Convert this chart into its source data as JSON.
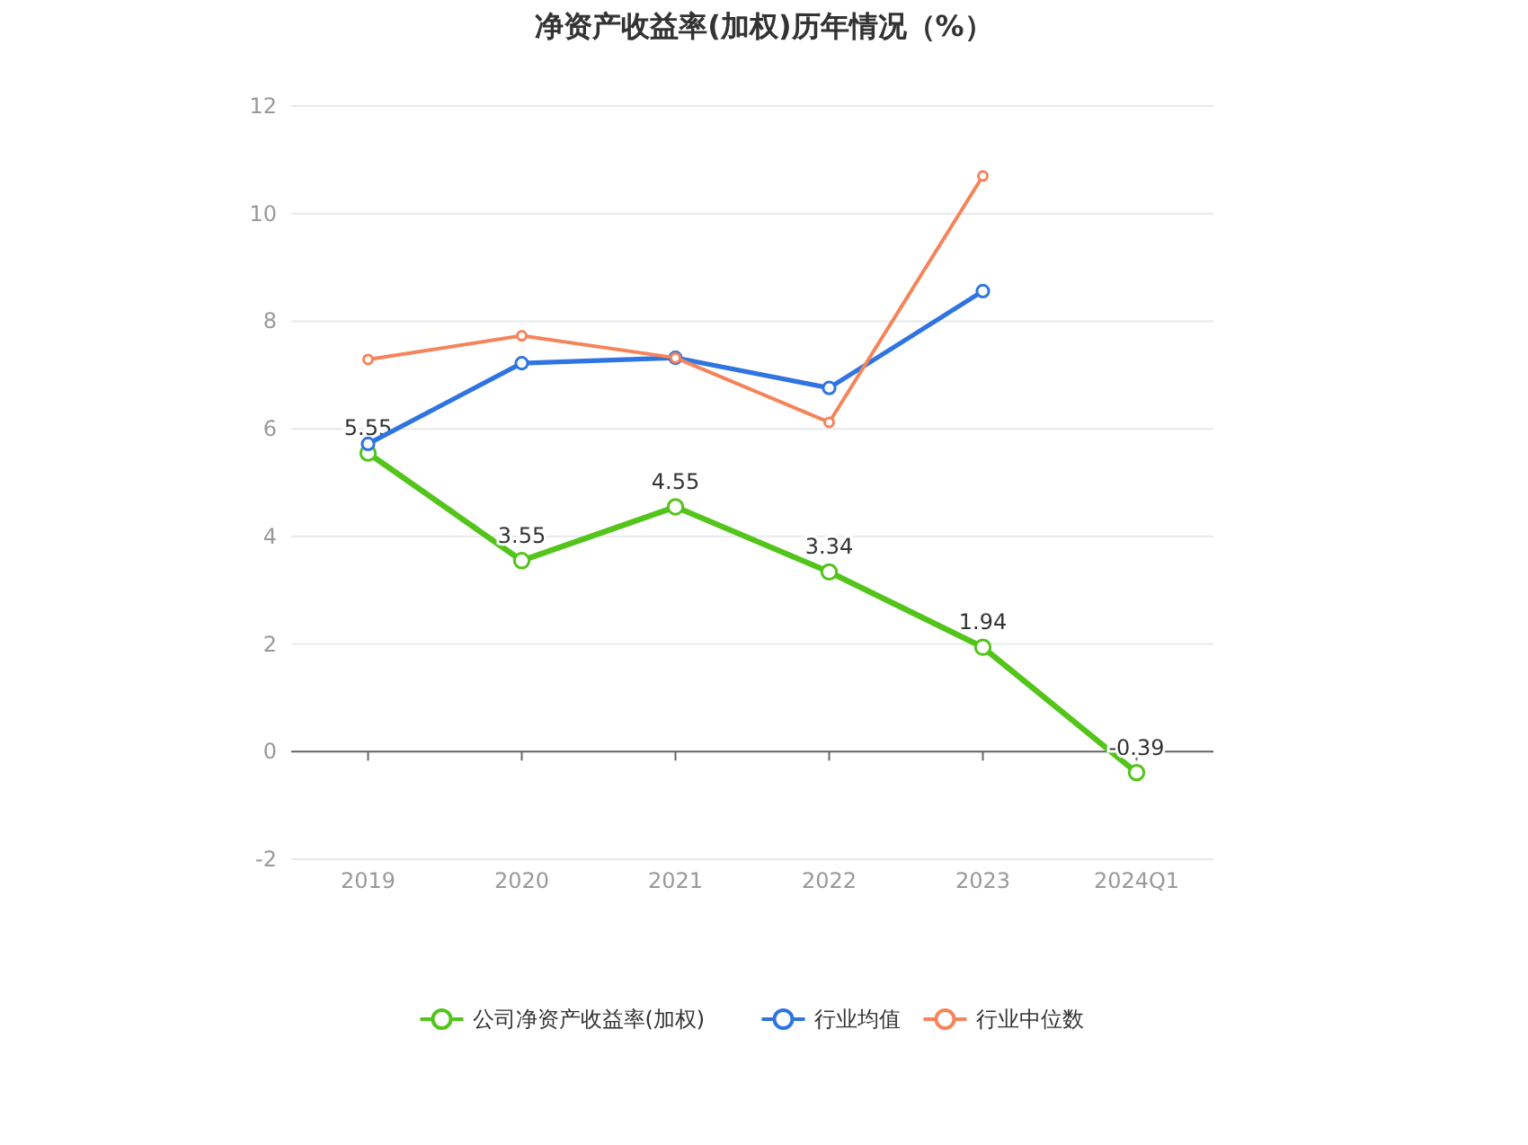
{
  "chart_data": {
    "type": "line",
    "title": "净资产收益率(加权)历年情况（%）",
    "categories": [
      "2019",
      "2020",
      "2021",
      "2022",
      "2023",
      "2024Q1"
    ],
    "series": [
      {
        "name": "公司净资产收益率(加权)",
        "color": "#52c41a",
        "values": [
          5.55,
          3.55,
          4.55,
          3.34,
          1.94,
          -0.39
        ],
        "value_labels": [
          "5.55",
          "3.55",
          "4.55",
          "3.34",
          "1.94",
          "-0.39"
        ]
      },
      {
        "name": "行业均值",
        "color": "#2f74e0",
        "values": [
          5.72,
          7.22,
          7.32,
          6.76,
          8.56,
          null
        ]
      },
      {
        "name": "行业中位数",
        "color": "#f5845a",
        "values": [
          7.29,
          7.73,
          7.32,
          6.12,
          10.7,
          null
        ]
      }
    ],
    "ylim": [
      -2,
      12
    ],
    "yticks": [
      -2,
      0,
      2,
      4,
      6,
      8,
      10,
      12
    ],
    "grid": "y",
    "legend": "bottom",
    "marker": "circle",
    "line_style": "solid"
  }
}
